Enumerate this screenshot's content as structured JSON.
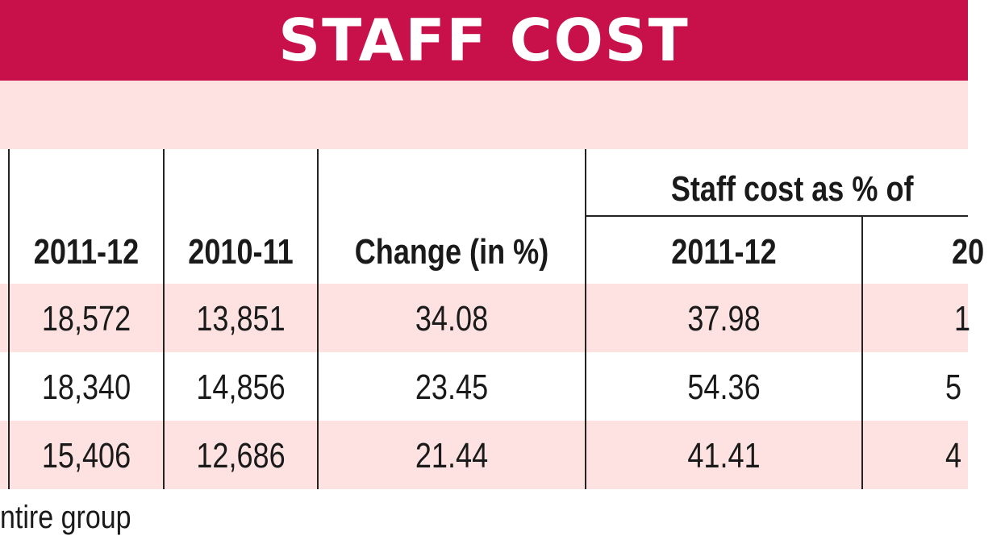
{
  "header": {
    "title": "STAFF COST"
  },
  "chart_data": {
    "type": "table",
    "title": "STAFF COST",
    "group_header": "Staff cost as % of",
    "columns": [
      "2011-12",
      "2010-11",
      "Change (in %)",
      "2011-12",
      "20"
    ],
    "rows": [
      [
        "18,572",
        "13,851",
        "34.08",
        "37.98",
        "1"
      ],
      [
        "18,340",
        "14,856",
        "23.45",
        "54.36",
        "5"
      ],
      [
        "15,406",
        "12,686",
        "21.44",
        "41.41",
        "4"
      ]
    ]
  },
  "footnote": "ntire group"
}
